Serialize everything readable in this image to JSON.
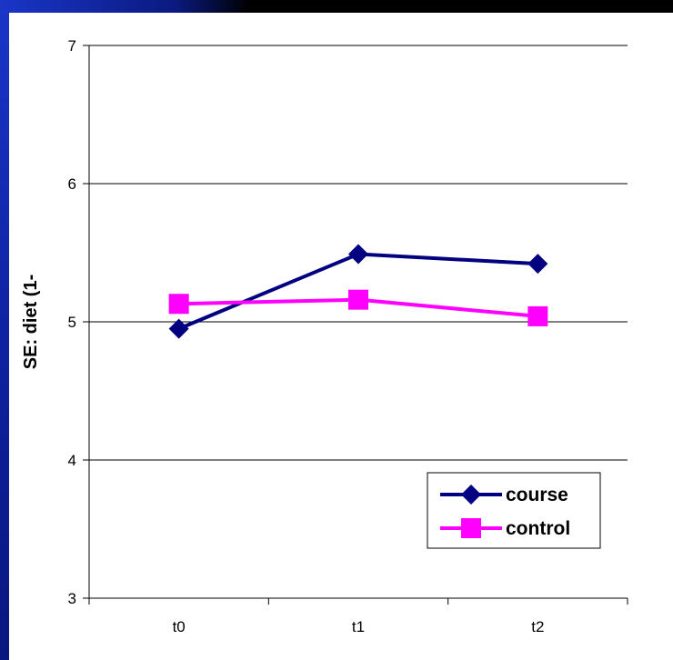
{
  "chart_data": {
    "type": "line",
    "categories": [
      "t0",
      "t1",
      "t2"
    ],
    "series": [
      {
        "name": "course",
        "values": [
          4.95,
          5.49,
          5.42
        ],
        "color": "#000080",
        "marker": "diamond"
      },
      {
        "name": "control",
        "values": [
          5.13,
          5.16,
          5.04
        ],
        "color": "#ff00ff",
        "marker": "square"
      }
    ],
    "title": "",
    "xlabel": "",
    "ylabel": "SE: diet (1-",
    "ylim": [
      3,
      7
    ],
    "yticks": [
      "3",
      "4",
      "5",
      "6",
      "7"
    ],
    "grid": true,
    "legend_position": "bottom-right"
  }
}
